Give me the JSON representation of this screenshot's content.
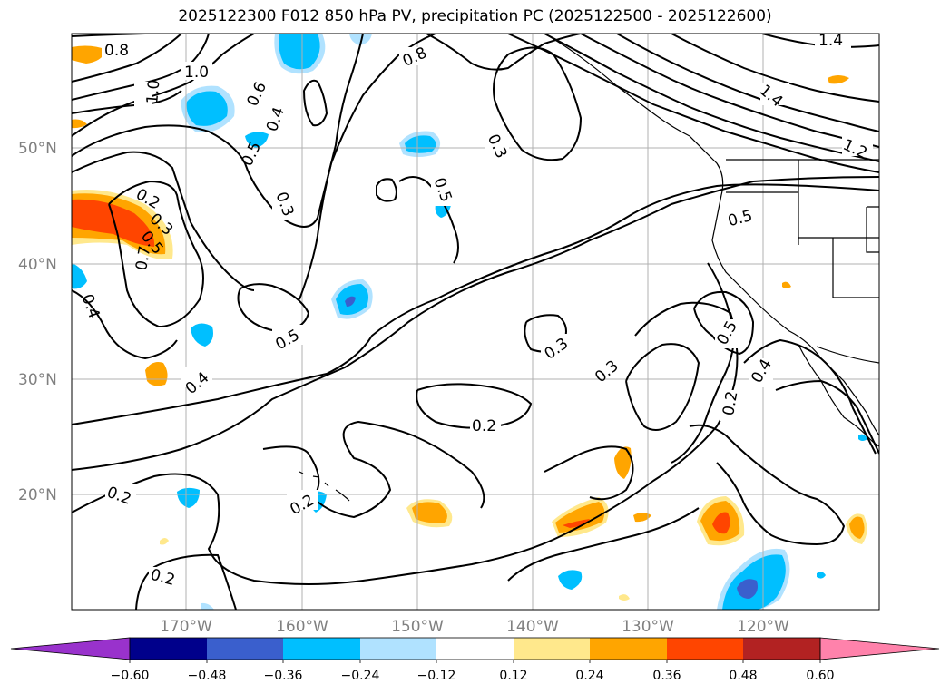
{
  "title": "2025122300 F012 850 hPa PV, precipitation PC (2025122500 - 2025122600)",
  "map": {
    "lat_labels": [
      "50°N",
      "40°N",
      "30°N",
      "20°N"
    ],
    "lon_labels": [
      "170°W",
      "160°W",
      "150°W",
      "140°W",
      "130°W",
      "120°W"
    ],
    "contour_labels": [
      "0.8",
      "1.0",
      "1.0",
      "0.6",
      "0.5",
      "0.4",
      "0.3",
      "0.8",
      "0.3",
      "0.5",
      "0.2",
      "0.3",
      "0.5",
      "0.7",
      "0.4",
      "0.5",
      "0.4",
      "0.3",
      "0.3",
      "0.2",
      "0.2",
      "0.2",
      "0.2",
      "0.5",
      "0.5",
      "0.4",
      "0.2",
      "1.4",
      "1.4",
      "1.2"
    ],
    "colors": {
      "grid": "#b0b0b0",
      "contour": "#000000",
      "coast": "#000000"
    }
  },
  "colorbar": {
    "ticks": [
      "−0.60",
      "−0.48",
      "−0.36",
      "−0.24",
      "−0.12",
      "0.12",
      "0.24",
      "0.36",
      "0.48",
      "0.60"
    ],
    "colors": [
      "#9932cc",
      "#00008b",
      "#3a5fcd",
      "#00bfff",
      "#b0e2ff",
      "#ffffff",
      "#ffe88c",
      "#ffa500",
      "#ff4500",
      "#b22222",
      "#ff82ab"
    ]
  }
}
